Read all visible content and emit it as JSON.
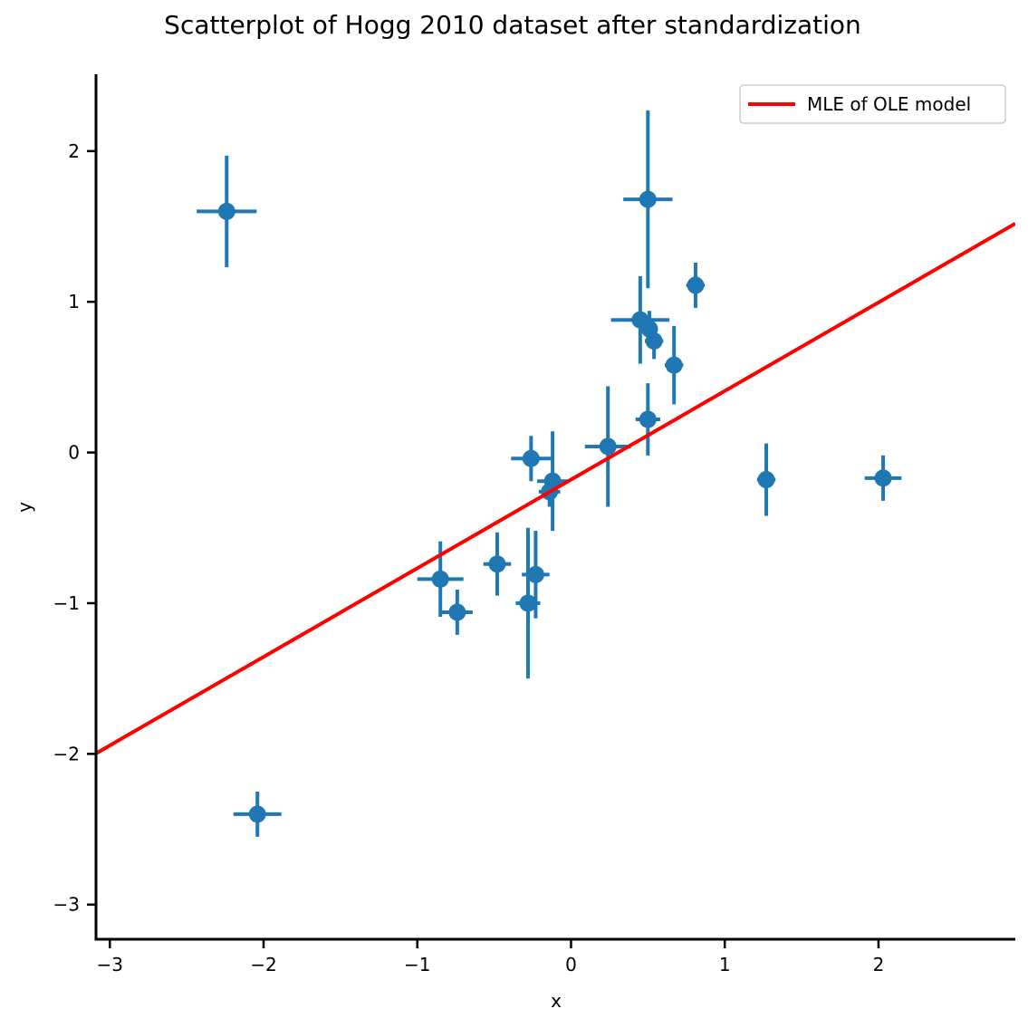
{
  "chart_data": {
    "type": "scatter",
    "title": "Scatterplot of Hogg 2010 dataset after standardization",
    "xlabel": "x",
    "ylabel": "y",
    "xlim": [
      -3.09,
      2.89
    ],
    "ylim": [
      -3.23,
      2.51
    ],
    "xticks": [
      -3,
      -2,
      -1,
      0,
      1,
      2
    ],
    "yticks": [
      -3,
      -2,
      -1,
      0,
      1,
      2
    ],
    "xtick_labels": [
      "−3",
      "−2",
      "−1",
      "0",
      "1",
      "2"
    ],
    "ytick_labels": [
      "−3",
      "−2",
      "−1",
      "0",
      "1",
      "2"
    ],
    "grid": false,
    "legend_position": "top-right",
    "colors": {
      "points": "#1f77b4",
      "line": "#ff0000"
    },
    "points": [
      {
        "x": -2.24,
        "y": 1.6,
        "xerr": 0.195,
        "yerr": 0.37
      },
      {
        "x": -2.04,
        "y": -2.4,
        "xerr": 0.156,
        "yerr": 0.15
      },
      {
        "x": 0.5,
        "y": 1.68,
        "xerr": 0.16,
        "yerr": 0.59
      },
      {
        "x": 0.81,
        "y": 1.11,
        "xerr": 0.06,
        "yerr": 0.15
      },
      {
        "x": 0.45,
        "y": 0.88,
        "xerr": 0.19,
        "yerr": 0.29
      },
      {
        "x": 0.51,
        "y": 0.82,
        "xerr": 0.04,
        "yerr": 0.12
      },
      {
        "x": 0.54,
        "y": 0.74,
        "xerr": 0.06,
        "yerr": 0.12
      },
      {
        "x": 0.67,
        "y": 0.58,
        "xerr": 0.06,
        "yerr": 0.26
      },
      {
        "x": 0.5,
        "y": 0.22,
        "xerr": 0.08,
        "yerr": 0.24
      },
      {
        "x": 0.24,
        "y": 0.04,
        "xerr": 0.15,
        "yerr": 0.4
      },
      {
        "x": -0.26,
        "y": -0.04,
        "xerr": 0.13,
        "yerr": 0.15
      },
      {
        "x": -0.12,
        "y": -0.19,
        "xerr": 0.1,
        "yerr": 0.33
      },
      {
        "x": -0.14,
        "y": -0.26,
        "xerr": 0.07,
        "yerr": 0.1
      },
      {
        "x": 1.27,
        "y": -0.18,
        "xerr": 0.06,
        "yerr": 0.24
      },
      {
        "x": 2.03,
        "y": -0.17,
        "xerr": 0.12,
        "yerr": 0.15
      },
      {
        "x": -0.85,
        "y": -0.84,
        "xerr": 0.15,
        "yerr": 0.25
      },
      {
        "x": -0.74,
        "y": -1.06,
        "xerr": 0.1,
        "yerr": 0.15
      },
      {
        "x": -0.48,
        "y": -0.74,
        "xerr": 0.09,
        "yerr": 0.21
      },
      {
        "x": -0.23,
        "y": -0.81,
        "xerr": 0.09,
        "yerr": 0.29
      },
      {
        "x": -0.28,
        "y": -1.0,
        "xerr": 0.08,
        "yerr": 0.5
      }
    ],
    "line": {
      "name": "MLE of OLE model",
      "slope": 0.588,
      "intercept": -0.18
    }
  }
}
